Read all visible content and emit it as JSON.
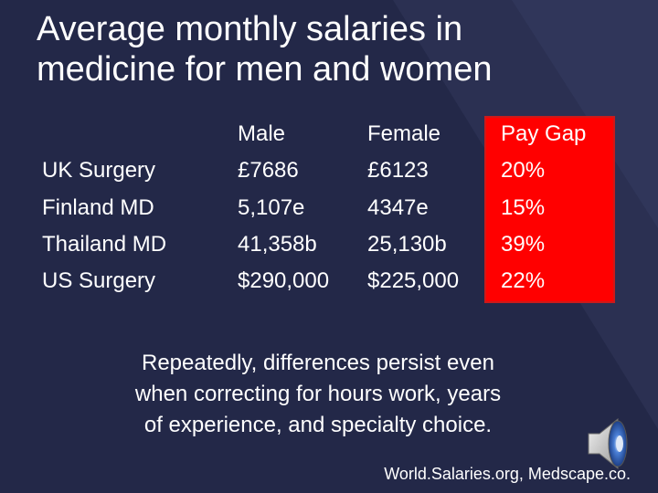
{
  "slide": {
    "title_line1": "Average monthly salaries in",
    "title_line2": "medicine for men and women"
  },
  "table": {
    "headers": {
      "male": "Male",
      "female": "Female",
      "pay_gap": "Pay Gap"
    },
    "rows": [
      {
        "label": "UK Surgery",
        "male": "£7686",
        "female": "£6123",
        "pay_gap": "20%"
      },
      {
        "label": "Finland MD",
        "male": "5,107e",
        "female": "4347e",
        "pay_gap": "15%"
      },
      {
        "label": "Thailand MD",
        "male": "41,358b",
        "female": "25,130b",
        "pay_gap": "39%"
      },
      {
        "label": "US Surgery",
        "male": "$290,000",
        "female": "$225,000",
        "pay_gap": "22%"
      }
    ]
  },
  "note": {
    "line1": "Repeatedly, differences persist even",
    "line2": "when correcting for hours work, years",
    "line3": "of experience, and specialty choice."
  },
  "source": "World.Salaries.org, Medscape.co.",
  "icons": {
    "speaker": "speaker-icon"
  },
  "colors": {
    "background": "#232848",
    "highlight": "#ff0000",
    "text": "#ffffff"
  }
}
